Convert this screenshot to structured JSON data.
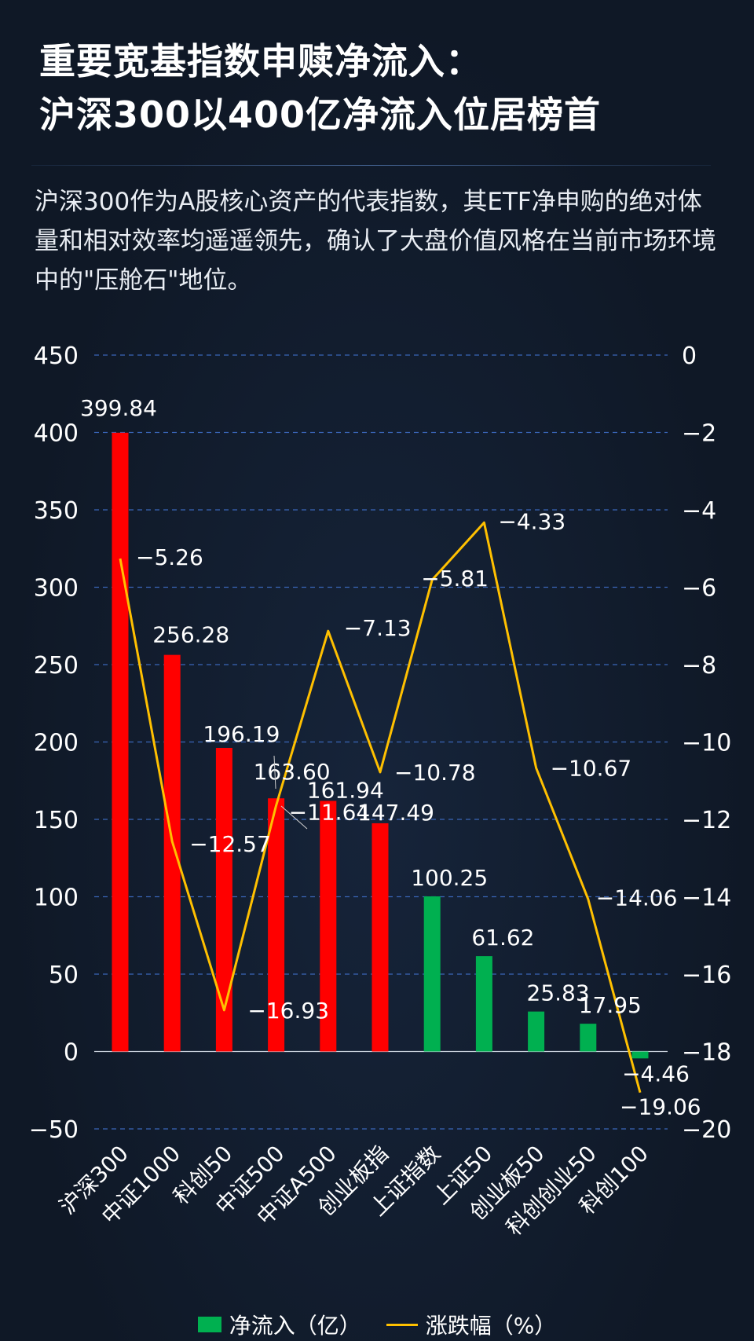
{
  "header": {
    "title_line1": "重要宽基指数申赎净流入：",
    "title_line2": "沪深300以400亿净流入位居榜首",
    "subtitle": "沪深300作为A股核心资产的代表指数，其ETF净申购的绝对体量和相对效率均遥遥领先，确认了大盘价值风格在当前市场环境中的\"压舱石\"地位。"
  },
  "colors": {
    "bar_red": "#ff0000",
    "bar_green": "#00b050",
    "line": "#ffc000",
    "grid": "#3a66b8",
    "text": "#ffffff"
  },
  "chart_data": {
    "type": "bar",
    "categories": [
      "沪深300",
      "中证1000",
      "科创50",
      "中证500",
      "中证A500",
      "创业板指",
      "上证指数",
      "上证50",
      "创业板50",
      "科创创业50",
      "科创100"
    ],
    "series": [
      {
        "name": "净流入（亿）",
        "type": "bar",
        "axis": "left",
        "values": [
          399.84,
          256.28,
          196.19,
          163.6,
          161.94,
          147.49,
          100.25,
          61.62,
          25.83,
          17.95,
          -4.46
        ],
        "labels": [
          "399.84",
          "256.28",
          "196.19",
          "163.60",
          "161.94",
          "147.49",
          "100.25",
          "61.62",
          "25.83",
          "17.95",
          "−4.46"
        ],
        "colors": [
          "#ff0000",
          "#ff0000",
          "#ff0000",
          "#ff0000",
          "#ff0000",
          "#ff0000",
          "#00b050",
          "#00b050",
          "#00b050",
          "#00b050",
          "#00b050"
        ]
      },
      {
        "name": "涨跌幅（%）",
        "type": "line",
        "axis": "right",
        "values": [
          -5.26,
          -12.57,
          -16.93,
          -11.64,
          -7.13,
          -10.78,
          -5.81,
          -4.33,
          -10.67,
          -14.06,
          -19.06
        ],
        "labels": [
          "−5.26",
          "−12.57",
          "−16.93",
          "−11.64",
          "−7.13",
          "−10.78",
          "−5.81",
          "−4.33",
          "−10.67",
          "−14.06",
          "−19.06"
        ]
      }
    ],
    "y_left": {
      "ylim": [
        -50,
        450
      ],
      "ticks": [
        "450",
        "400",
        "350",
        "300",
        "250",
        "200",
        "150",
        "100",
        "50",
        "0",
        "−50"
      ]
    },
    "y_right": {
      "ylim": [
        -20,
        0
      ],
      "ticks": [
        "0",
        "−2",
        "−4",
        "−6",
        "−8",
        "−10",
        "−12",
        "−14",
        "−16",
        "−18",
        "−20"
      ]
    },
    "grid": true,
    "legend": "bottom",
    "legend_items": [
      "净流入（亿）",
      "涨跌幅（%）"
    ]
  }
}
